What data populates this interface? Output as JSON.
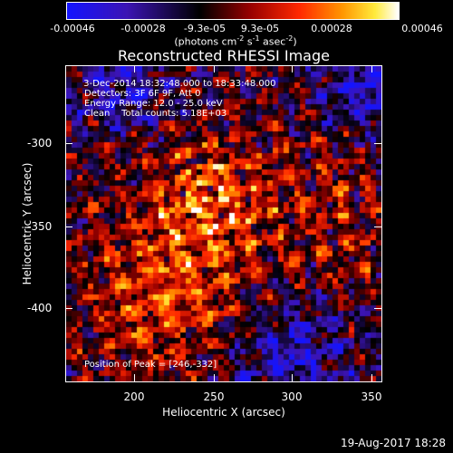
{
  "colorbar": {
    "tick_labels": [
      "-0.00046",
      "-0.00028",
      "-9.3e-05",
      "9.3e-05",
      "0.00028",
      "0.00046"
    ],
    "units_base": "(photons cm",
    "units_exp1": "-2",
    "units_mid1": " s",
    "units_exp2": "-1",
    "units_mid2": " asec",
    "units_exp3": "-2",
    "units_end": ")",
    "range": [
      -0.00046,
      0.00046
    ]
  },
  "annotations": {
    "time": " 3-Dec-2014 18:32:48.000 to 18:33:48.000",
    "detectors": "Detectors: 3F 6F 9F, Att 0",
    "energy": "Energy Range: 12.0 - 25.0 keV",
    "clean": "Clean    Total counts: 5.18E+03",
    "peak": "Position of Peak = [246,-332]"
  },
  "footer": {
    "timestamp": "19-Aug-2017 18:28"
  },
  "chart_data": {
    "type": "heatmap",
    "title": "Reconstructed RHESSI Image",
    "xlabel": "Heliocentric X (arcsec)",
    "ylabel": "Heliocentric Y (arcsec)",
    "x_ticks": [
      "200",
      "250",
      "300",
      "350"
    ],
    "y_ticks": [
      "-300",
      "-350",
      "-400"
    ],
    "xlim": [
      161,
      351
    ],
    "ylim": [
      -443,
      -253
    ],
    "peak": [
      246,
      -332
    ],
    "grid": false
  }
}
